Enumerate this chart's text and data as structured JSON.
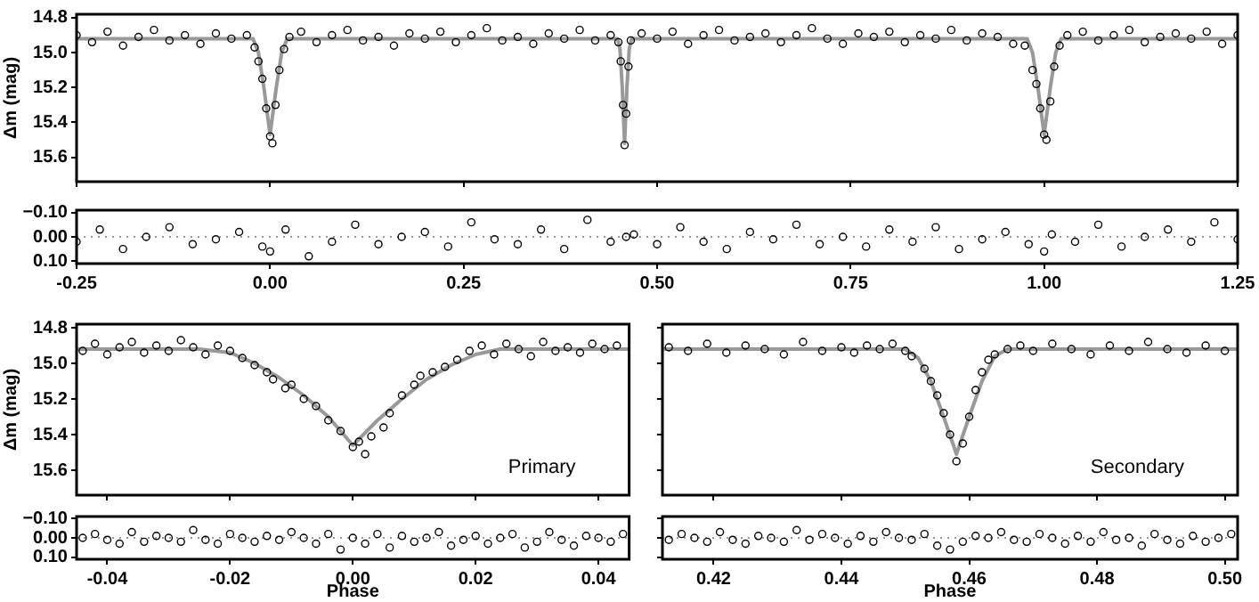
{
  "chart_data": [
    {
      "type": "scatter",
      "ylabel": "Δm (mag)",
      "xlim": [
        -0.25,
        1.25
      ],
      "ylim": [
        15.74,
        14.78
      ],
      "xticks": [
        -0.25,
        0,
        0.25,
        0.5,
        0.75,
        1,
        1.25
      ],
      "yticks": [
        14.8,
        {
          "value": 15,
          "label": "15.0"
        },
        15.2,
        15.4,
        15.6
      ],
      "tick_labels": "y",
      "marker": "circle",
      "series": [
        {
          "type": "scatter",
          "color": "#000000",
          "x": [
            -0.25,
            -0.23,
            -0.21,
            -0.19,
            -0.17,
            -0.15,
            -0.13,
            -0.11,
            -0.09,
            -0.07,
            -0.05,
            -0.03,
            -0.02,
            -0.015,
            -0.01,
            -0.005,
            0,
            0.003,
            0.007,
            0.012,
            0.018,
            0.025,
            0.04,
            0.06,
            0.08,
            0.1,
            0.12,
            0.14,
            0.16,
            0.18,
            0.2,
            0.22,
            0.24,
            0.26,
            0.28,
            0.3,
            0.32,
            0.34,
            0.36,
            0.38,
            0.4,
            0.42,
            0.44,
            0.45,
            0.453,
            0.456,
            0.458,
            0.46,
            0.463,
            0.466,
            0.48,
            0.5,
            0.52,
            0.54,
            0.56,
            0.58,
            0.6,
            0.62,
            0.64,
            0.66,
            0.68,
            0.7,
            0.72,
            0.74,
            0.76,
            0.78,
            0.8,
            0.82,
            0.84,
            0.86,
            0.88,
            0.9,
            0.92,
            0.94,
            0.96,
            0.975,
            0.985,
            0.99,
            0.995,
            1,
            1.003,
            1.008,
            1.013,
            1.02,
            1.03,
            1.05,
            1.07,
            1.09,
            1.11,
            1.13,
            1.15,
            1.17,
            1.19,
            1.21,
            1.23,
            1.25
          ],
          "values": [
            14.9,
            14.94,
            14.88,
            14.96,
            14.91,
            14.87,
            14.93,
            14.9,
            14.95,
            14.89,
            14.92,
            14.9,
            14.97,
            15.05,
            15.15,
            15.32,
            15.48,
            15.52,
            15.3,
            15.1,
            14.98,
            14.91,
            14.88,
            14.94,
            14.9,
            14.87,
            14.93,
            14.91,
            14.96,
            14.89,
            14.92,
            14.88,
            14.94,
            14.9,
            14.86,
            14.93,
            14.91,
            14.95,
            14.89,
            14.92,
            14.87,
            14.93,
            14.9,
            14.94,
            15.05,
            15.3,
            15.53,
            15.35,
            15.08,
            14.93,
            14.89,
            14.92,
            14.88,
            14.95,
            14.9,
            14.87,
            14.93,
            14.91,
            14.89,
            14.94,
            14.9,
            14.86,
            14.92,
            14.95,
            14.89,
            14.91,
            14.88,
            14.94,
            14.9,
            14.92,
            14.87,
            14.93,
            14.89,
            14.91,
            14.95,
            14.96,
            15.1,
            15.18,
            15.32,
            15.47,
            15.5,
            15.28,
            15.08,
            14.96,
            14.9,
            14.88,
            14.93,
            14.9,
            14.87,
            14.94,
            14.91,
            14.89,
            14.92,
            14.88,
            14.95,
            14.9
          ]
        },
        {
          "type": "line",
          "marker": "none",
          "color": "#999999",
          "x": [
            -0.25,
            -0.022,
            -0.015,
            -0.008,
            0,
            0.008,
            0.015,
            0.022,
            0.449,
            0.452,
            0.455,
            0.458,
            0.461,
            0.464,
            0.467,
            0.978,
            0.985,
            0.992,
            1,
            1.008,
            1.015,
            1.022,
            1.25
          ],
          "values": [
            14.92,
            14.92,
            15.0,
            15.2,
            15.47,
            15.2,
            15.0,
            14.92,
            14.92,
            14.98,
            15.2,
            15.52,
            15.2,
            14.98,
            14.92,
            14.92,
            15.0,
            15.2,
            15.47,
            15.2,
            15.0,
            14.92,
            14.92
          ]
        }
      ]
    },
    {
      "type": "scatter",
      "xlim": [
        -0.25,
        1.25
      ],
      "ylim": [
        0.11,
        -0.11
      ],
      "xticks": [
        -0.25,
        {
          "value": 0,
          "label": "0.00"
        },
        0.25,
        {
          "value": 0.5,
          "label": "0.50"
        },
        0.75,
        {
          "value": 1,
          "label": "1.00"
        },
        1.25
      ],
      "yticks": [
        {
          "value": -0.1,
          "label": "−0.10"
        },
        {
          "value": 0,
          "label": "0.00"
        },
        {
          "value": 0.1,
          "label": "0.10"
        }
      ],
      "marker": "circle",
      "series": [
        {
          "type": "scatter",
          "color": "#000000",
          "x": [
            -0.25,
            -0.22,
            -0.19,
            -0.16,
            -0.13,
            -0.1,
            -0.07,
            -0.04,
            -0.01,
            0,
            0.02,
            0.05,
            0.08,
            0.11,
            0.14,
            0.17,
            0.2,
            0.23,
            0.26,
            0.29,
            0.32,
            0.35,
            0.38,
            0.41,
            0.44,
            0.46,
            0.47,
            0.5,
            0.53,
            0.56,
            0.59,
            0.62,
            0.65,
            0.68,
            0.71,
            0.74,
            0.77,
            0.8,
            0.83,
            0.86,
            0.89,
            0.92,
            0.95,
            0.98,
            1,
            1.01,
            1.04,
            1.07,
            1.1,
            1.13,
            1.16,
            1.19,
            1.22,
            1.25
          ],
          "values": [
            0.02,
            -0.03,
            0.05,
            0,
            -0.04,
            0.03,
            0.01,
            -0.02,
            0.04,
            0.06,
            -0.03,
            0.08,
            0.02,
            -0.05,
            0.03,
            0,
            -0.02,
            0.04,
            -0.06,
            0.01,
            0.03,
            -0.03,
            0.05,
            -0.07,
            0.02,
            0,
            -0.01,
            0.03,
            -0.04,
            0.02,
            0.05,
            -0.02,
            0.01,
            -0.05,
            0.03,
            0,
            0.04,
            -0.03,
            0.02,
            -0.04,
            0.05,
            0.01,
            -0.02,
            0.03,
            0.06,
            -0.01,
            0.02,
            -0.05,
            0.04,
            0,
            -0.03,
            0.02,
            -0.06,
            0.01
          ]
        }
      ],
      "ref_lines": [
        {
          "axis": "y",
          "value": 0,
          "color": "#999999",
          "line_style": "dotted"
        }
      ]
    },
    {
      "type": "scatter",
      "ylabel": "Δm (mag)",
      "xlim": [
        -0.045,
        0.045
      ],
      "ylim": [
        15.74,
        14.78
      ],
      "xticks": [
        -0.04,
        -0.02,
        0,
        0.02,
        0.04
      ],
      "yticks": [
        14.8,
        {
          "value": 15,
          "label": "15.0"
        },
        15.2,
        15.4,
        15.6
      ],
      "tick_labels": "y",
      "marker": "circle",
      "annotations": [
        "Primary"
      ],
      "series": [
        {
          "type": "scatter",
          "color": "#000000",
          "x": [
            -0.044,
            -0.042,
            -0.04,
            -0.038,
            -0.036,
            -0.034,
            -0.032,
            -0.03,
            -0.028,
            -0.026,
            -0.024,
            -0.022,
            -0.02,
            -0.018,
            -0.016,
            -0.014,
            -0.013,
            -0.011,
            -0.01,
            -0.008,
            -0.006,
            -0.004,
            -0.002,
            0,
            0.001,
            0.002,
            0.003,
            0.005,
            0.006,
            0.008,
            0.01,
            0.011,
            0.013,
            0.015,
            0.017,
            0.019,
            0.021,
            0.023,
            0.025,
            0.027,
            0.029,
            0.031,
            0.033,
            0.035,
            0.037,
            0.039,
            0.041,
            0.043
          ],
          "values": [
            14.93,
            14.89,
            14.95,
            14.91,
            14.88,
            14.94,
            14.9,
            14.93,
            14.87,
            14.91,
            14.95,
            14.9,
            14.93,
            14.97,
            15.01,
            15.05,
            15.09,
            15.14,
            15.12,
            15.2,
            15.24,
            15.32,
            15.38,
            15.47,
            15.44,
            15.51,
            15.41,
            15.36,
            15.28,
            15.18,
            15.12,
            15.07,
            15.05,
            15.02,
            14.98,
            14.93,
            14.9,
            14.95,
            14.89,
            14.92,
            14.96,
            14.88,
            14.93,
            14.91,
            14.94,
            14.89,
            14.92,
            14.9
          ]
        },
        {
          "type": "line",
          "marker": "none",
          "color": "#999999",
          "x": [
            -0.045,
            -0.025,
            -0.02,
            -0.016,
            -0.012,
            -0.008,
            -0.004,
            0,
            0.004,
            0.008,
            0.012,
            0.016,
            0.02,
            0.024,
            0.045
          ],
          "values": [
            14.92,
            14.92,
            14.94,
            15.0,
            15.08,
            15.18,
            15.3,
            15.46,
            15.32,
            15.2,
            15.09,
            15.01,
            14.95,
            14.92,
            14.92
          ]
        }
      ]
    },
    {
      "type": "scatter",
      "xlabel": "Phase",
      "xlim": [
        -0.045,
        0.045
      ],
      "ylim": [
        0.11,
        -0.11
      ],
      "xticks": [
        -0.04,
        -0.02,
        {
          "value": 0,
          "label": "0.00"
        },
        0.02,
        0.04
      ],
      "yticks": [
        {
          "value": -0.1,
          "label": "−0.10"
        },
        {
          "value": 0,
          "label": "0.00"
        },
        {
          "value": 0.1,
          "label": "0.10"
        }
      ],
      "marker": "circle",
      "series": [
        {
          "type": "scatter",
          "color": "#000000",
          "x": [
            -0.044,
            -0.042,
            -0.04,
            -0.038,
            -0.036,
            -0.034,
            -0.032,
            -0.03,
            -0.028,
            -0.026,
            -0.024,
            -0.022,
            -0.02,
            -0.018,
            -0.016,
            -0.014,
            -0.012,
            -0.01,
            -0.008,
            -0.006,
            -0.004,
            -0.002,
            0,
            0.002,
            0.004,
            0.006,
            0.008,
            0.01,
            0.012,
            0.014,
            0.016,
            0.018,
            0.02,
            0.022,
            0.024,
            0.026,
            0.028,
            0.03,
            0.032,
            0.034,
            0.036,
            0.038,
            0.04,
            0.042,
            0.044
          ],
          "values": [
            0,
            -0.02,
            0.01,
            0.03,
            -0.03,
            0.02,
            -0.01,
            0,
            0.02,
            -0.04,
            0.01,
            0.03,
            -0.02,
            0,
            0.02,
            -0.01,
            0.01,
            -0.03,
            0,
            0.03,
            -0.02,
            0.06,
            0,
            0.03,
            -0.02,
            0.05,
            -0.01,
            0.02,
            0,
            -0.03,
            0.04,
            0.01,
            -0.01,
            0.03,
            0,
            -0.02,
            0.05,
            0.02,
            -0.03,
            0.01,
            0.04,
            -0.01,
            0,
            0.02,
            -0.02
          ]
        }
      ],
      "ref_lines": [
        {
          "axis": "y",
          "value": 0,
          "color": "#999999",
          "line_style": "dotted"
        }
      ]
    },
    {
      "type": "scatter",
      "xlim": [
        0.412,
        0.502
      ],
      "ylim": [
        15.74,
        14.78
      ],
      "xticks": [
        0.42,
        0.44,
        0.46,
        0.48,
        0.5
      ],
      "yticks": [
        14.8,
        15,
        15.2,
        15.4,
        15.6
      ],
      "tick_labels": false,
      "marker": "circle",
      "annotations": [
        "Secondary"
      ],
      "series": [
        {
          "type": "scatter",
          "color": "#000000",
          "x": [
            0.413,
            0.416,
            0.419,
            0.422,
            0.425,
            0.428,
            0.431,
            0.434,
            0.437,
            0.44,
            0.442,
            0.444,
            0.446,
            0.448,
            0.45,
            0.451,
            0.453,
            0.454,
            0.455,
            0.456,
            0.457,
            0.458,
            0.459,
            0.46,
            0.461,
            0.462,
            0.463,
            0.464,
            0.466,
            0.468,
            0.47,
            0.473,
            0.476,
            0.479,
            0.482,
            0.485,
            0.488,
            0.491,
            0.494,
            0.497,
            0.5
          ],
          "values": [
            14.91,
            14.93,
            14.89,
            14.94,
            14.9,
            14.92,
            14.95,
            14.88,
            14.93,
            14.91,
            14.94,
            14.9,
            14.92,
            14.89,
            14.93,
            14.96,
            15.03,
            15.1,
            15.18,
            15.28,
            15.4,
            15.55,
            15.45,
            15.3,
            15.15,
            15.05,
            14.98,
            14.95,
            14.92,
            14.9,
            14.93,
            14.89,
            14.92,
            14.95,
            14.9,
            14.93,
            14.88,
            14.92,
            14.94,
            14.9,
            14.93
          ]
        },
        {
          "type": "line",
          "marker": "none",
          "color": "#999999",
          "x": [
            0.412,
            0.45,
            0.452,
            0.454,
            0.456,
            0.458,
            0.46,
            0.462,
            0.464,
            0.466,
            0.502
          ],
          "values": [
            14.92,
            14.92,
            14.97,
            15.1,
            15.3,
            15.51,
            15.3,
            15.1,
            14.96,
            14.92,
            14.92
          ]
        }
      ]
    },
    {
      "type": "scatter",
      "xlabel": "Phase",
      "xlim": [
        0.412,
        0.502
      ],
      "ylim": [
        0.11,
        -0.11
      ],
      "xticks": [
        0.42,
        0.44,
        0.46,
        0.48,
        {
          "value": 0.5,
          "label": "0.50"
        }
      ],
      "yticks": [
        -0.1,
        0,
        0.1
      ],
      "tick_labels": "x",
      "marker": "circle",
      "series": [
        {
          "type": "scatter",
          "color": "#000000",
          "x": [
            0.413,
            0.415,
            0.417,
            0.419,
            0.421,
            0.423,
            0.425,
            0.427,
            0.429,
            0.431,
            0.433,
            0.435,
            0.437,
            0.439,
            0.441,
            0.443,
            0.445,
            0.447,
            0.449,
            0.451,
            0.453,
            0.455,
            0.457,
            0.459,
            0.461,
            0.463,
            0.465,
            0.467,
            0.469,
            0.471,
            0.473,
            0.475,
            0.477,
            0.479,
            0.481,
            0.483,
            0.485,
            0.487,
            0.489,
            0.491,
            0.493,
            0.495,
            0.497,
            0.499,
            0.501
          ],
          "values": [
            0.01,
            -0.02,
            0,
            0.02,
            -0.03,
            0.01,
            0.03,
            -0.01,
            0,
            0.02,
            -0.04,
            0.01,
            -0.02,
            0,
            0.03,
            -0.01,
            0.02,
            -0.03,
            0,
            0.01,
            -0.02,
            0.04,
            0.06,
            0.02,
            -0.01,
            0,
            -0.03,
            0.01,
            0.02,
            -0.02,
            0,
            0.03,
            -0.01,
            0.02,
            -0.03,
            0.01,
            0,
            0.04,
            -0.02,
            0.01,
            0.03,
            -0.01,
            0.02,
            0,
            -0.02
          ]
        }
      ],
      "ref_lines": [
        {
          "axis": "y",
          "value": 0,
          "color": "#999999",
          "line_style": "dotted"
        }
      ]
    }
  ]
}
